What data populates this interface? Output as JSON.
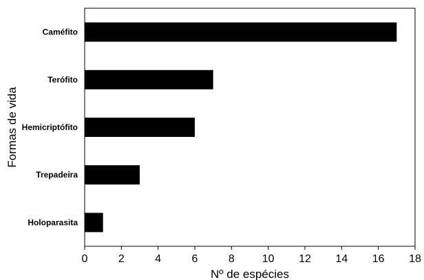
{
  "chart_data": {
    "type": "bar",
    "orientation": "horizontal",
    "categories": [
      "Caméfito",
      "Terófito",
      "Hemicriptófito",
      "Trepadeira",
      "Holoparasita"
    ],
    "values": [
      17,
      7,
      6,
      3,
      1
    ],
    "title": "",
    "xlabel": "Nº de espécies",
    "ylabel": "Formas de vida",
    "xlim": [
      0,
      18
    ],
    "xticks": [
      0,
      2,
      4,
      6,
      8,
      10,
      12,
      14,
      16,
      18
    ],
    "grid": false,
    "bar_color": "#000000"
  }
}
